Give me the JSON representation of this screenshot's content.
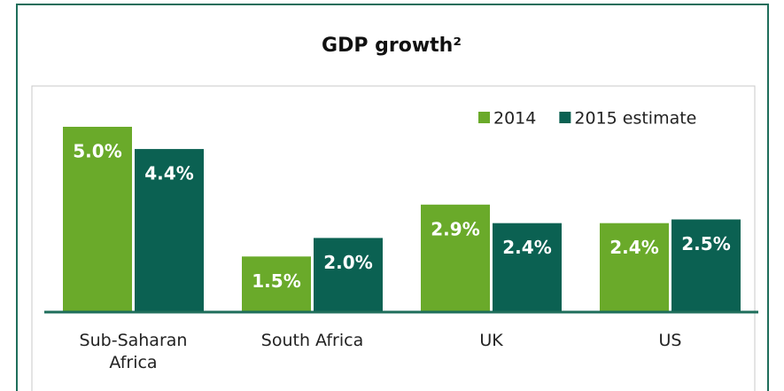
{
  "chart_data": {
    "type": "bar",
    "title": "GDP growth²",
    "categories": [
      "Sub-Saharan Africa",
      "South Africa",
      "UK",
      "US"
    ],
    "series": [
      {
        "name": "2014",
        "color": "#6aaa2a",
        "values": [
          5.0,
          1.5,
          2.9,
          2.4
        ],
        "value_labels": [
          "5.0%",
          "1.5%",
          "2.9%",
          "2.4%"
        ]
      },
      {
        "name": "2015 estimate",
        "color": "#0b6152",
        "values": [
          4.4,
          2.0,
          2.4,
          2.5
        ],
        "value_labels": [
          "4.4%",
          "2.0%",
          "2.4%",
          "2.5%"
        ]
      }
    ],
    "legend": "top-right"
  }
}
